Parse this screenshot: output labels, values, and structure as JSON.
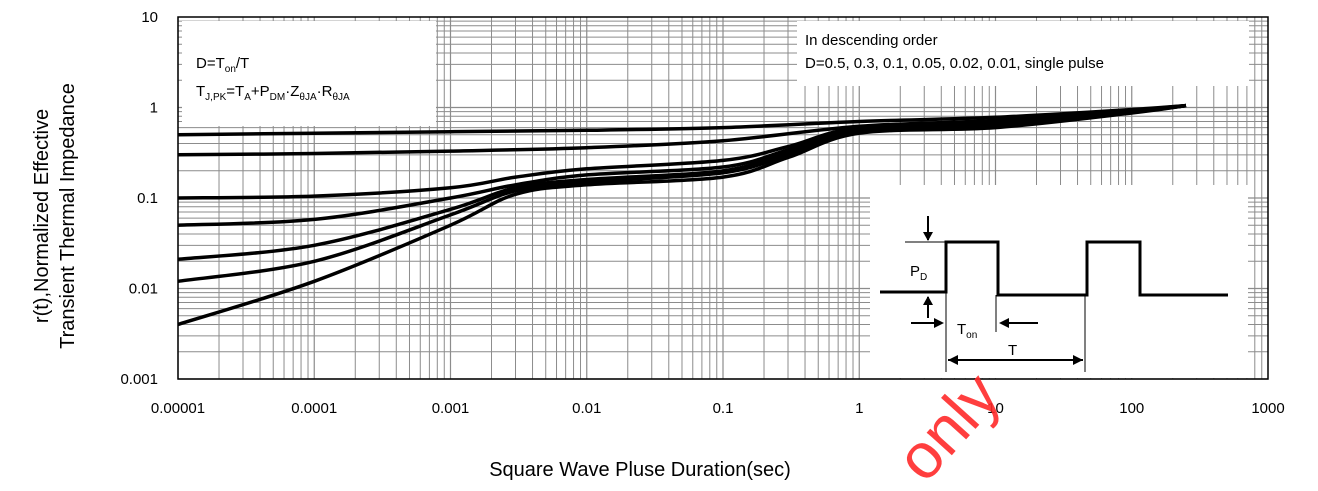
{
  "chart_data": {
    "type": "line",
    "title": "",
    "xlabel": "Square Wave Pluse Duration(sec)",
    "ylabel_line1": "r(t),Normalized Effective",
    "ylabel_line2": "Transient Thermal Impedance",
    "xscale": "log",
    "yscale": "log",
    "xlim": [
      1e-05,
      1000
    ],
    "ylim": [
      0.001,
      10
    ],
    "x_ticks": [
      "0.00001",
      "0.0001",
      "0.001",
      "0.01",
      "0.1",
      "1",
      "10",
      "100",
      "1000"
    ],
    "y_ticks": [
      "10",
      "1",
      "0.1",
      "0.01",
      "0.001"
    ],
    "grid": true,
    "series": [
      {
        "x": [
          1e-05,
          0.0001,
          0.001,
          0.01,
          0.1,
          1,
          10,
          100,
          250
        ],
        "y": [
          0.5,
          0.52,
          0.54,
          0.56,
          0.6,
          0.7,
          0.78,
          0.95,
          1.05
        ]
      },
      {
        "x": [
          1e-05,
          0.0001,
          0.001,
          0.01,
          0.1,
          1,
          10,
          100,
          250
        ],
        "y": [
          0.3,
          0.31,
          0.33,
          0.36,
          0.43,
          0.62,
          0.72,
          0.93,
          1.05
        ]
      },
      {
        "x": [
          1e-05,
          0.0001,
          0.001,
          0.003,
          0.01,
          0.1,
          0.3,
          1,
          10,
          100,
          250
        ],
        "y": [
          0.1,
          0.105,
          0.13,
          0.17,
          0.21,
          0.26,
          0.37,
          0.6,
          0.68,
          0.9,
          1.05
        ]
      },
      {
        "x": [
          1e-05,
          0.0001,
          0.001,
          0.003,
          0.01,
          0.1,
          0.3,
          1,
          10,
          100,
          250
        ],
        "y": [
          0.05,
          0.058,
          0.1,
          0.14,
          0.18,
          0.22,
          0.34,
          0.57,
          0.66,
          0.9,
          1.05
        ]
      },
      {
        "x": [
          1e-05,
          0.0001,
          0.001,
          0.003,
          0.01,
          0.1,
          0.3,
          1,
          10,
          100,
          250
        ],
        "y": [
          0.021,
          0.03,
          0.075,
          0.13,
          0.16,
          0.2,
          0.32,
          0.55,
          0.64,
          0.89,
          1.05
        ]
      },
      {
        "x": [
          1e-05,
          0.0001,
          0.001,
          0.003,
          0.01,
          0.1,
          0.3,
          1,
          10,
          100,
          250
        ],
        "y": [
          0.012,
          0.02,
          0.065,
          0.12,
          0.15,
          0.19,
          0.3,
          0.54,
          0.62,
          0.88,
          1.05
        ]
      },
      {
        "x": [
          1e-05,
          0.0001,
          0.001,
          0.003,
          0.01,
          0.1,
          0.3,
          1,
          10,
          100,
          250
        ],
        "y": [
          0.004,
          0.012,
          0.05,
          0.11,
          0.14,
          0.17,
          0.28,
          0.52,
          0.6,
          0.87,
          1.05
        ]
      }
    ],
    "annotations": {
      "formula_line1_a": "D=T",
      "formula_line1_sub": "on",
      "formula_line1_b": "/T",
      "formula_line2_a": "T",
      "formula_line2_sub1": "J,PK",
      "formula_line2_b": "=T",
      "formula_line2_sub2": "A",
      "formula_line2_c": "+P",
      "formula_line2_sub3": "DM",
      "formula_line2_d": "·Z",
      "formula_line2_sub4": "θJA",
      "formula_line2_e": "·R",
      "formula_line2_sub5": "θJA",
      "order_line1": "In descending order",
      "order_line2": "D=0.5, 0.3, 0.1, 0.05, 0.02, 0.01, single pulse",
      "inset_pd": "P",
      "inset_pd_sub": "D",
      "inset_ton": "T",
      "inset_ton_sub": "on",
      "inset_t": "T"
    },
    "line_color": "#000000",
    "grid_color": "#8c8c8c",
    "watermark": "only",
    "watermark_color": "#ff2a2a"
  }
}
